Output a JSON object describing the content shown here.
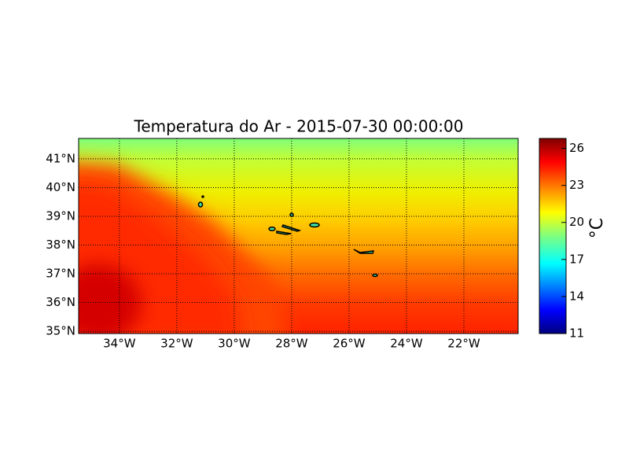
{
  "chart_data": {
    "type": "map",
    "title": "Temperatura do Ar - 2015-07-30 00:00:00",
    "xlim": [
      -35.42,
      -20.11
    ],
    "ylim": [
      34.92,
      41.71
    ],
    "xticks": [
      {
        "value": -34,
        "label": "34°W"
      },
      {
        "value": -32,
        "label": "32°W"
      },
      {
        "value": -30,
        "label": "30°W"
      },
      {
        "value": -28,
        "label": "28°W"
      },
      {
        "value": -26,
        "label": "26°W"
      },
      {
        "value": -24,
        "label": "24°W"
      },
      {
        "value": -22,
        "label": "22°W"
      }
    ],
    "yticks": [
      {
        "value": 35,
        "label": "35°N"
      },
      {
        "value": 36,
        "label": "36°N"
      },
      {
        "value": 37,
        "label": "37°N"
      },
      {
        "value": 38,
        "label": "38°N"
      },
      {
        "value": 39,
        "label": "39°N"
      },
      {
        "value": 40,
        "label": "40°N"
      },
      {
        "value": 41,
        "label": "41°N"
      }
    ],
    "grid": true,
    "colorbar": {
      "label": "°C",
      "lim": [
        11,
        26.8
      ],
      "ticks": [
        11,
        14,
        17,
        20,
        23,
        26
      ]
    }
  }
}
